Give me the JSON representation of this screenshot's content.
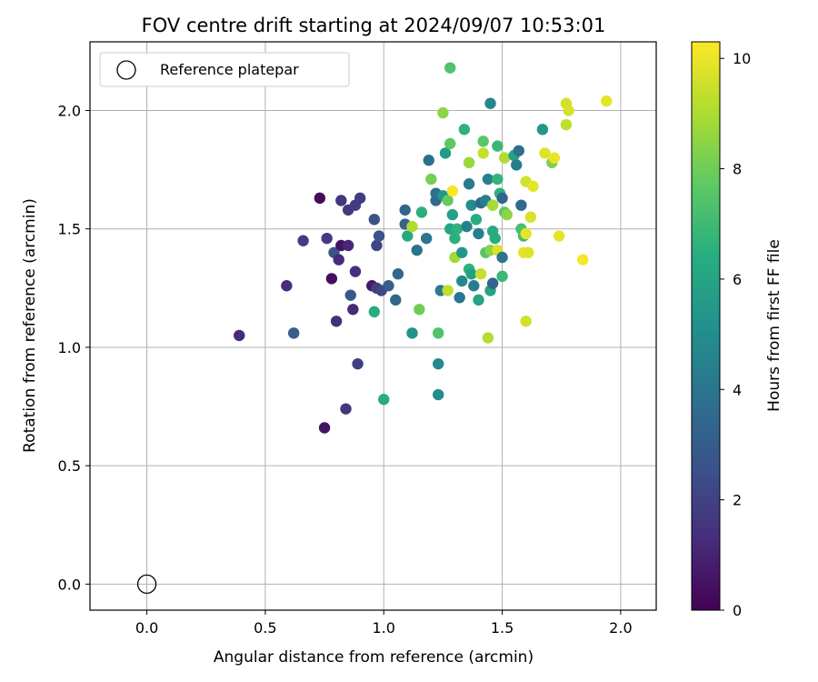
{
  "chart_data": {
    "type": "scatter",
    "title": "FOV centre drift starting at 2024/09/07 10:53:01",
    "xlabel": "Angular distance from reference (arcmin)",
    "ylabel": "Rotation from reference (arcmin)",
    "xlim": [
      -0.24,
      2.15
    ],
    "ylim": [
      -0.11,
      2.29
    ],
    "xticks": [
      "0.0",
      "0.5",
      "1.0",
      "1.5",
      "2.0"
    ],
    "xtick_values": [
      0,
      0.5,
      1,
      1.5,
      2
    ],
    "yticks": [
      "0.0",
      "0.5",
      "1.0",
      "1.5",
      "2.0"
    ],
    "ytick_values": [
      0,
      0.5,
      1,
      1.5,
      2
    ],
    "grid": true,
    "legend": {
      "position": "top-left",
      "label": "Reference platepar"
    },
    "reference_point": {
      "x": 0,
      "y": 0
    },
    "colorbar": {
      "label": "Hours from first FF file",
      "min": 0,
      "max": 10.3,
      "ticks": [
        "0",
        "2",
        "4",
        "6",
        "8",
        "10"
      ],
      "tick_values": [
        0,
        2,
        4,
        6,
        8,
        10
      ],
      "colormap": "viridis"
    },
    "points": [
      [
        0.39,
        1.05,
        1.2
      ],
      [
        0.62,
        1.06,
        3.0
      ],
      [
        0.59,
        1.26,
        1.3
      ],
      [
        0.66,
        1.45,
        1.8
      ],
      [
        0.73,
        1.63,
        0.3
      ],
      [
        0.75,
        0.66,
        0.5
      ],
      [
        0.76,
        1.46,
        1.7
      ],
      [
        0.78,
        1.29,
        0.4
      ],
      [
        0.79,
        1.4,
        2.7
      ],
      [
        0.8,
        1.11,
        1.4
      ],
      [
        0.81,
        1.37,
        1.2
      ],
      [
        0.82,
        1.43,
        0.5
      ],
      [
        0.82,
        1.62,
        1.6
      ],
      [
        0.84,
        0.74,
        1.6
      ],
      [
        0.85,
        1.58,
        1.7
      ],
      [
        0.85,
        1.43,
        1.1
      ],
      [
        0.86,
        1.22,
        2.8
      ],
      [
        0.87,
        1.16,
        1.2
      ],
      [
        0.88,
        1.6,
        1.8
      ],
      [
        0.88,
        1.32,
        1.4
      ],
      [
        0.89,
        0.93,
        1.9
      ],
      [
        0.9,
        1.63,
        1.8
      ],
      [
        0.95,
        1.26,
        0.7
      ],
      [
        0.96,
        1.54,
        2.6
      ],
      [
        0.97,
        1.43,
        2.1
      ],
      [
        0.97,
        1.25,
        1.8
      ],
      [
        0.98,
        1.47,
        2.6
      ],
      [
        0.96,
        1.15,
        6.4
      ],
      [
        0.99,
        1.24,
        2.2
      ],
      [
        1.0,
        0.78,
        6.3
      ],
      [
        1.02,
        1.26,
        3.0
      ],
      [
        1.05,
        1.2,
        3.4
      ],
      [
        1.06,
        1.31,
        3.4
      ],
      [
        1.09,
        1.52,
        3.2
      ],
      [
        1.09,
        1.58,
        3.4
      ],
      [
        1.1,
        1.47,
        6.2
      ],
      [
        1.12,
        1.51,
        9.1
      ],
      [
        1.12,
        1.06,
        5.3
      ],
      [
        1.14,
        1.41,
        3.9
      ],
      [
        1.15,
        1.16,
        8.0
      ],
      [
        1.16,
        1.57,
        6.5
      ],
      [
        1.18,
        1.46,
        4.0
      ],
      [
        1.19,
        1.79,
        3.8
      ],
      [
        1.2,
        1.71,
        8.1
      ],
      [
        1.22,
        1.62,
        3.4
      ],
      [
        1.22,
        1.65,
        3.8
      ],
      [
        1.23,
        1.06,
        7.4
      ],
      [
        1.23,
        0.93,
        4.8
      ],
      [
        1.23,
        0.8,
        5.0
      ],
      [
        1.24,
        1.24,
        4.2
      ],
      [
        1.25,
        1.99,
        8.5
      ],
      [
        1.25,
        1.64,
        5.4
      ],
      [
        1.26,
        1.82,
        5.6
      ],
      [
        1.27,
        1.24,
        9.3
      ],
      [
        1.27,
        1.62,
        7.8
      ],
      [
        1.28,
        1.5,
        6.1
      ],
      [
        1.28,
        1.86,
        7.7
      ],
      [
        1.28,
        2.18,
        7.4
      ],
      [
        1.29,
        1.66,
        10.2
      ],
      [
        1.29,
        1.56,
        5.8
      ],
      [
        1.3,
        1.38,
        8.8
      ],
      [
        1.3,
        1.46,
        6.5
      ],
      [
        1.31,
        1.5,
        6.6
      ],
      [
        1.32,
        1.21,
        4.0
      ],
      [
        1.33,
        1.28,
        4.8
      ],
      [
        1.33,
        1.4,
        5.4
      ],
      [
        1.34,
        1.92,
        6.6
      ],
      [
        1.35,
        1.51,
        4.5
      ],
      [
        1.36,
        1.69,
        4.2
      ],
      [
        1.36,
        1.33,
        6.6
      ],
      [
        1.36,
        1.78,
        8.7
      ],
      [
        1.37,
        1.6,
        5.0
      ],
      [
        1.37,
        1.31,
        5.8
      ],
      [
        1.38,
        1.26,
        4.3
      ],
      [
        1.39,
        1.54,
        6.4
      ],
      [
        1.4,
        1.2,
        6.0
      ],
      [
        1.4,
        1.48,
        4.5
      ],
      [
        1.41,
        1.31,
        9.4
      ],
      [
        1.41,
        1.61,
        3.4
      ],
      [
        1.42,
        1.82,
        9.4
      ],
      [
        1.42,
        1.87,
        7.6
      ],
      [
        1.43,
        1.4,
        7.5
      ],
      [
        1.43,
        1.62,
        4.4
      ],
      [
        1.44,
        1.04,
        9.1
      ],
      [
        1.44,
        1.71,
        4.5
      ],
      [
        1.45,
        1.41,
        8.4
      ],
      [
        1.45,
        2.03,
        4.7
      ],
      [
        1.45,
        1.24,
        6.0
      ],
      [
        1.46,
        1.49,
        6.3
      ],
      [
        1.46,
        1.6,
        8.9
      ],
      [
        1.46,
        1.27,
        3.3
      ],
      [
        1.47,
        1.46,
        6.4
      ],
      [
        1.48,
        1.41,
        9.7
      ],
      [
        1.48,
        1.85,
        6.9
      ],
      [
        1.48,
        1.71,
        6.7
      ],
      [
        1.49,
        1.65,
        6.6
      ],
      [
        1.5,
        1.38,
        4.0
      ],
      [
        1.5,
        1.63,
        3.3
      ],
      [
        1.5,
        1.3,
        6.9
      ],
      [
        1.51,
        1.57,
        7.6
      ],
      [
        1.51,
        1.8,
        9.1
      ],
      [
        1.52,
        1.56,
        8.5
      ],
      [
        1.55,
        1.81,
        5.8
      ],
      [
        1.56,
        1.77,
        4.3
      ],
      [
        1.57,
        1.83,
        3.8
      ],
      [
        1.58,
        1.5,
        7.2
      ],
      [
        1.58,
        1.6,
        3.6
      ],
      [
        1.59,
        1.4,
        10.0
      ],
      [
        1.59,
        1.47,
        7.0
      ],
      [
        1.6,
        1.7,
        9.6
      ],
      [
        1.6,
        1.11,
        9.6
      ],
      [
        1.6,
        1.48,
        9.9
      ],
      [
        1.61,
        1.4,
        9.8
      ],
      [
        1.62,
        1.55,
        9.7
      ],
      [
        1.63,
        1.68,
        9.9
      ],
      [
        1.67,
        1.92,
        5.4
      ],
      [
        1.68,
        1.82,
        9.8
      ],
      [
        1.71,
        1.78,
        8.3
      ],
      [
        1.72,
        1.8,
        10.0
      ],
      [
        1.74,
        1.47,
        9.9
      ],
      [
        1.77,
        1.94,
        9.3
      ],
      [
        1.77,
        2.03,
        9.6
      ],
      [
        1.78,
        2.0,
        9.7
      ],
      [
        1.84,
        1.37,
        10.2
      ],
      [
        1.94,
        2.04,
        9.9
      ]
    ]
  }
}
